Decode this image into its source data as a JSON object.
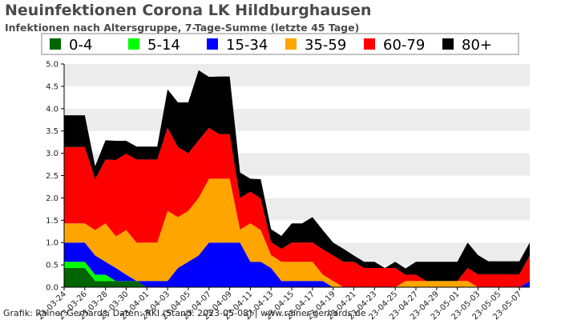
{
  "chart_data": {
    "type": "area",
    "stacked": true,
    "title": "Neuinfektionen Corona LK Hildburghausen",
    "subtitle": "Infektionen nach Altersgruppe, 7-Tage-Summe (letzte 45 Tage)",
    "credit": "Grafik: Rainer Gerhards, Daten: RKI (Stand: 2023-05-08) | www.rainer-gerhards.de",
    "ylim": [
      0,
      5
    ],
    "yticks": [
      "0.0",
      "0.5",
      "1.0",
      "1.5",
      "2.0",
      "2.5",
      "3.0",
      "3.5",
      "4.0",
      "4.5",
      "5.0"
    ],
    "grid": "horizontal bands",
    "legend_position": "top",
    "x": [
      "2023-03-24",
      "2023-03-25",
      "2023-03-26",
      "2023-03-27",
      "2023-03-28",
      "2023-03-29",
      "2023-03-30",
      "2023-03-31",
      "2023-04-01",
      "2023-04-02",
      "2023-04-03",
      "2023-04-04",
      "2023-04-05",
      "2023-04-06",
      "2023-04-07",
      "2023-04-08",
      "2023-04-09",
      "2023-04-10",
      "2023-04-11",
      "2023-04-12",
      "2023-04-13",
      "2023-04-14",
      "2023-04-15",
      "2023-04-16",
      "2023-04-17",
      "2023-04-18",
      "2023-04-19",
      "2023-04-20",
      "2023-04-21",
      "2023-04-22",
      "2023-04-23",
      "2023-04-24",
      "2023-04-25",
      "2023-04-26",
      "2023-04-27",
      "2023-04-28",
      "2023-04-29",
      "2023-04-30",
      "2023-05-01",
      "2023-05-02",
      "2023-05-03",
      "2023-05-04",
      "2023-05-05",
      "2023-05-06",
      "2023-05-07",
      "2023-05-08"
    ],
    "xtick_labels": [
      "23-03-24",
      "23-03-26",
      "23-03-28",
      "23-03-30",
      "23-04-01",
      "23-04-03",
      "23-04-05",
      "23-04-07",
      "23-04-09",
      "23-04-11",
      "23-04-13",
      "23-04-15",
      "23-04-17",
      "23-04-19",
      "23-04-21",
      "23-04-23",
      "23-04-25",
      "23-04-27",
      "23-04-29",
      "23-05-01",
      "23-05-03",
      "23-05-05",
      "23-05-07"
    ],
    "series": [
      {
        "name": "0-4",
        "color": "#006400",
        "values": [
          0.43,
          0.43,
          0.43,
          0.14,
          0.14,
          0.14,
          0.14,
          0.14,
          0,
          0,
          0,
          0,
          0,
          0,
          0,
          0,
          0,
          0,
          0,
          0,
          0,
          0,
          0,
          0,
          0,
          0,
          0,
          0,
          0,
          0,
          0,
          0,
          0,
          0,
          0,
          0,
          0,
          0,
          0,
          0,
          0,
          0,
          0,
          0,
          0,
          0
        ]
      },
      {
        "name": "5-14",
        "color": "#00ff00",
        "values": [
          0.14,
          0.14,
          0.14,
          0.14,
          0.14,
          0,
          0,
          0,
          0,
          0,
          0,
          0,
          0,
          0,
          0,
          0,
          0,
          0,
          0,
          0,
          0,
          0,
          0,
          0,
          0,
          0,
          0,
          0,
          0,
          0,
          0,
          0,
          0,
          0,
          0,
          0,
          0,
          0,
          0,
          0,
          0,
          0,
          0,
          0,
          0,
          0
        ]
      },
      {
        "name": "15-34",
        "color": "#0000ff",
        "values": [
          0.43,
          0.43,
          0.43,
          0.43,
          0.29,
          0.29,
          0.14,
          0,
          0.14,
          0.14,
          0.14,
          0.43,
          0.57,
          0.71,
          1.0,
          1.0,
          1.0,
          1.0,
          0.57,
          0.57,
          0.43,
          0.14,
          0.14,
          0.14,
          0.14,
          0.14,
          0,
          0,
          0,
          0,
          0,
          0,
          0,
          0,
          0,
          0,
          0,
          0,
          0,
          0,
          0,
          0,
          0,
          0,
          0,
          0.14
        ]
      },
      {
        "name": "35-59",
        "color": "#ffa500",
        "values": [
          0.43,
          0.43,
          0.43,
          0.57,
          0.86,
          0.71,
          1.0,
          0.86,
          0.86,
          0.86,
          1.57,
          1.14,
          1.14,
          1.29,
          1.43,
          1.43,
          1.43,
          0.29,
          0.86,
          0.71,
          0.29,
          0.43,
          0.43,
          0.43,
          0.43,
          0.14,
          0.14,
          0,
          0,
          0,
          0,
          0,
          0,
          0.14,
          0.14,
          0.14,
          0.14,
          0.14,
          0.14,
          0.14,
          0,
          0,
          0,
          0,
          0,
          0
        ]
      },
      {
        "name": "60-79",
        "color": "#ff0000",
        "values": [
          1.71,
          1.71,
          1.71,
          1.14,
          1.43,
          1.71,
          1.71,
          1.86,
          1.86,
          1.86,
          1.86,
          1.57,
          1.29,
          1.29,
          1.14,
          1.0,
          1.0,
          0.71,
          0.71,
          0.71,
          0.29,
          0.29,
          0.43,
          0.43,
          0.43,
          0.57,
          0.57,
          0.57,
          0.57,
          0.43,
          0.43,
          0.43,
          0.43,
          0.14,
          0.14,
          0,
          0,
          0,
          0,
          0.29,
          0.29,
          0.29,
          0.29,
          0.29,
          0.29,
          0.57
        ]
      },
      {
        "name": "80+",
        "color": "#000000",
        "values": [
          0.71,
          0.71,
          0.71,
          0.29,
          0.43,
          0.43,
          0.29,
          0.29,
          0.29,
          0.29,
          0.86,
          1.0,
          1.14,
          1.57,
          1.14,
          1.29,
          1.29,
          0.57,
          0.29,
          0.43,
          0.29,
          0.29,
          0.43,
          0.43,
          0.57,
          0.43,
          0.29,
          0.29,
          0.14,
          0.14,
          0.14,
          0,
          0.14,
          0.14,
          0.29,
          0.43,
          0.43,
          0.43,
          0.43,
          0.57,
          0.43,
          0.29,
          0.29,
          0.29,
          0.29,
          0.29
        ]
      }
    ]
  }
}
